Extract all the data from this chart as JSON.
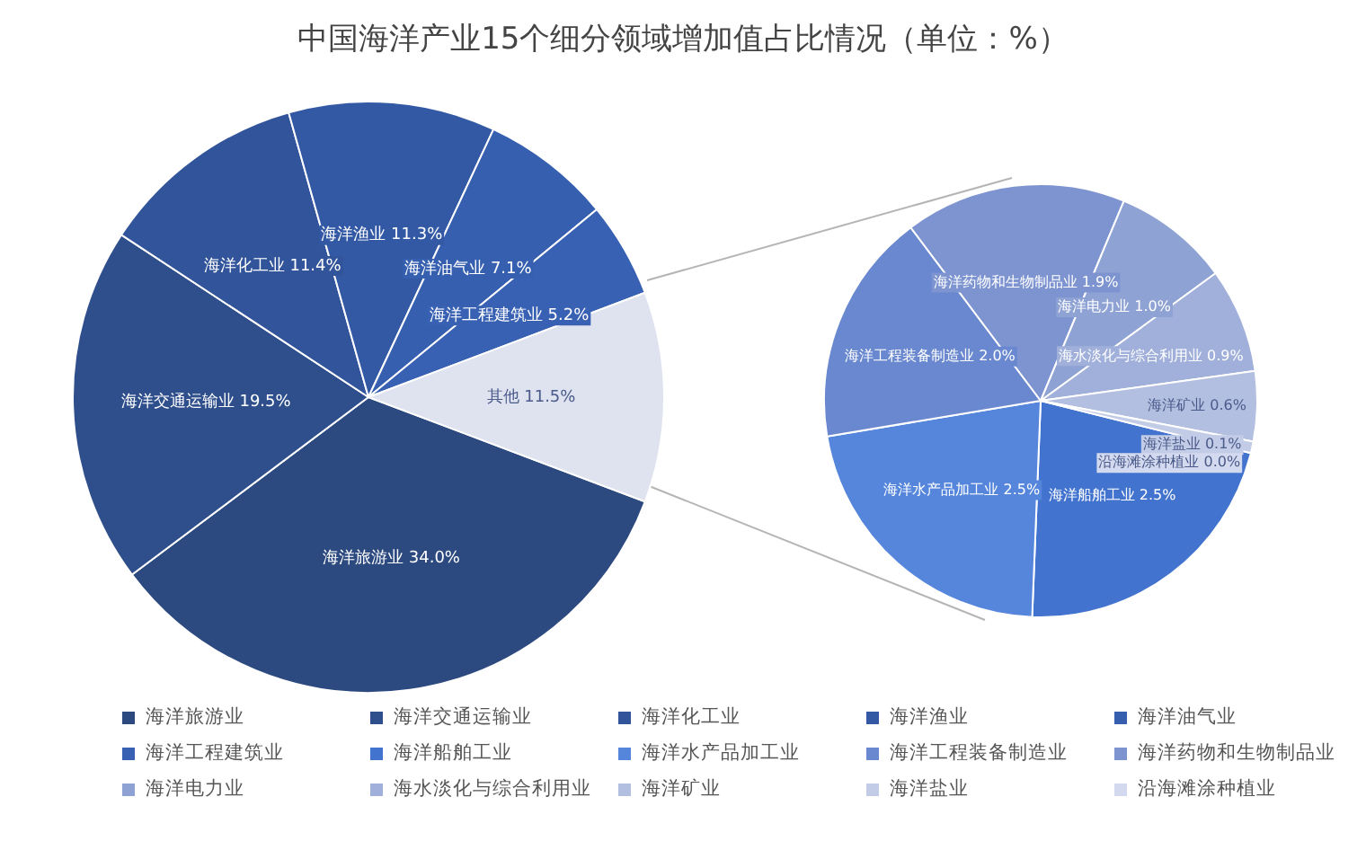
{
  "chart_data": [
    {
      "type": "pie",
      "title": "中国海洋产业15个细分领域增加值占比情况（单位：%）",
      "categories": [
        "海洋旅游业",
        "海洋交通运输业",
        "海洋化工业",
        "海洋渔业",
        "海洋油气业",
        "海洋工程建筑业",
        "其他"
      ],
      "values": [
        34.0,
        19.5,
        11.4,
        11.3,
        7.1,
        5.2,
        11.5
      ],
      "value_labels": [
        "34.0%",
        "19.5%",
        "11.4%",
        "11.3%",
        "7.1%",
        "5.2%",
        "11.5%"
      ],
      "colors": [
        "#2d4a80",
        "#2f4f8c",
        "#31549a",
        "#3359a5",
        "#365fb0",
        "#3860b3",
        "#dfe2ef"
      ],
      "legend": "bottom"
    },
    {
      "type": "pie",
      "categories": [
        "海洋船舶工业",
        "海洋水产品加工业",
        "海洋工程装备制造业",
        "海洋药物和生物制品业",
        "海洋电力业",
        "海水淡化与综合利用业",
        "海洋矿业",
        "海洋盐业",
        "沿海滩涂种植业"
      ],
      "values": [
        2.5,
        2.5,
        2.0,
        1.9,
        1.0,
        0.9,
        0.6,
        0.1,
        0.0
      ],
      "value_labels": [
        "2.5%",
        "2.5%",
        "2.0%",
        "1.9%",
        "1.0%",
        "0.9%",
        "0.6%",
        "0.1%",
        "0.0%"
      ],
      "colors": [
        "#4273cf",
        "#5586dc",
        "#6a88cf",
        "#7d94d0",
        "#8fa2d4",
        "#a0b0da",
        "#b3bfe0",
        "#c3cce6",
        "#d3d9ee"
      ],
      "legend": "bottom"
    }
  ]
}
